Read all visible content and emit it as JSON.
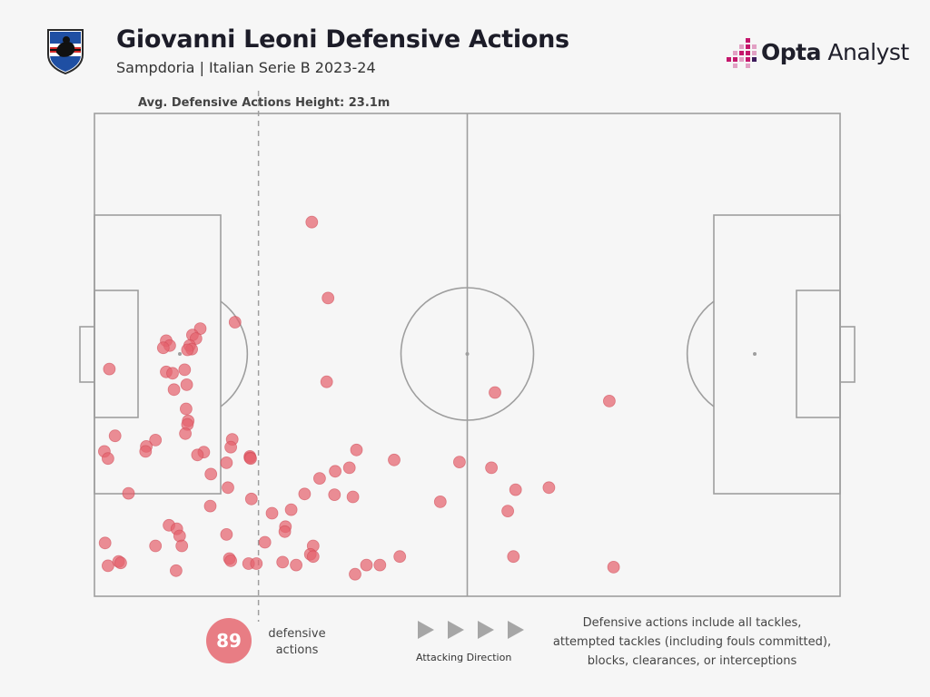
{
  "header": {
    "title": "Giovanni Leoni Defensive Actions",
    "subtitle": "Sampdoria | Italian Serie B 2023-24"
  },
  "brand": {
    "prefix": "Opta",
    "suffix": " Analyst",
    "icon": "opta-analyst-logo",
    "accent_colors": [
      "#c4176c",
      "#e2a0c4",
      "#3d1b5b"
    ]
  },
  "crest": {
    "icon": "sampdoria-crest"
  },
  "colors": {
    "dot": "#e5636d",
    "pitch_line": "#9e9e9e",
    "background": "#f6f6f6"
  },
  "chart_data": {
    "type": "scatter",
    "title": "Giovanni Leoni Defensive Actions",
    "pitch": {
      "length_m": 105,
      "width_m": 68
    },
    "average_line": {
      "label": "Avg. Defensive Actions Height: 23.1m",
      "x": 23.1
    },
    "points_unit": "metres from own goal line (x) and from left touchline (y)",
    "points": [
      [
        30.6,
        15.3
      ],
      [
        32.9,
        26.0
      ],
      [
        19.8,
        29.4
      ],
      [
        14.9,
        30.3
      ],
      [
        13.8,
        31.2
      ],
      [
        14.3,
        31.7
      ],
      [
        10.1,
        32.0
      ],
      [
        10.6,
        32.7
      ],
      [
        13.4,
        32.7
      ],
      [
        9.7,
        33.0
      ],
      [
        13.7,
        33.2
      ],
      [
        13.1,
        33.3
      ],
      [
        2.1,
        36.0
      ],
      [
        12.7,
        36.1
      ],
      [
        10.1,
        36.4
      ],
      [
        11.0,
        36.6
      ],
      [
        32.7,
        37.8
      ],
      [
        13.0,
        38.2
      ],
      [
        11.2,
        38.9
      ],
      [
        56.4,
        39.3
      ],
      [
        72.5,
        40.5
      ],
      [
        12.9,
        41.6
      ],
      [
        13.2,
        43.3
      ],
      [
        13.1,
        43.8
      ],
      [
        12.8,
        45.1
      ],
      [
        2.9,
        45.4
      ],
      [
        19.4,
        45.9
      ],
      [
        8.6,
        46.0
      ],
      [
        7.3,
        46.9
      ],
      [
        19.2,
        47.0
      ],
      [
        36.9,
        47.4
      ],
      [
        1.4,
        47.6
      ],
      [
        7.2,
        47.6
      ],
      [
        15.4,
        47.7
      ],
      [
        14.5,
        48.1
      ],
      [
        21.9,
        48.3
      ],
      [
        21.9,
        48.5
      ],
      [
        22.0,
        48.6
      ],
      [
        42.2,
        48.8
      ],
      [
        1.9,
        48.6
      ],
      [
        51.4,
        49.1
      ],
      [
        18.6,
        49.2
      ],
      [
        35.9,
        49.9
      ],
      [
        55.9,
        49.9
      ],
      [
        16.4,
        50.8
      ],
      [
        31.7,
        51.4
      ],
      [
        18.8,
        52.7
      ],
      [
        64.0,
        52.7
      ],
      [
        59.3,
        53.0
      ],
      [
        4.8,
        53.5
      ],
      [
        29.6,
        53.6
      ],
      [
        33.8,
        53.7
      ],
      [
        36.4,
        54.0
      ],
      [
        22.1,
        54.3
      ],
      [
        48.7,
        54.7
      ],
      [
        16.3,
        55.3
      ],
      [
        27.7,
        55.8
      ],
      [
        25.0,
        56.3
      ],
      [
        58.2,
        56.0
      ],
      [
        10.5,
        58.0
      ],
      [
        26.9,
        58.2
      ],
      [
        11.6,
        58.5
      ],
      [
        26.8,
        58.9
      ],
      [
        18.6,
        59.3
      ],
      [
        12.0,
        59.5
      ],
      [
        24.0,
        60.4
      ],
      [
        1.5,
        60.5
      ],
      [
        8.6,
        60.9
      ],
      [
        12.3,
        60.9
      ],
      [
        30.8,
        60.9
      ],
      [
        30.4,
        62.1
      ],
      [
        30.8,
        62.4
      ],
      [
        43.0,
        62.4
      ],
      [
        59.0,
        62.4
      ],
      [
        19.0,
        62.7
      ],
      [
        19.2,
        63.0
      ],
      [
        3.4,
        63.1
      ],
      [
        3.7,
        63.3
      ],
      [
        21.7,
        63.4
      ],
      [
        22.8,
        63.4
      ],
      [
        26.5,
        63.2
      ],
      [
        28.4,
        63.6
      ],
      [
        38.3,
        63.6
      ],
      [
        40.2,
        63.6
      ],
      [
        1.9,
        63.7
      ],
      [
        73.1,
        63.9
      ],
      [
        36.7,
        64.9
      ],
      [
        11.5,
        64.4
      ],
      [
        33.9,
        50.4
      ]
    ]
  },
  "summary": {
    "count": "89",
    "count_label_line1": "defensive",
    "count_label_line2": "actions",
    "direction_label": "Attacking Direction",
    "arrow_icon": "play-triangle-icon"
  },
  "note": {
    "line1": "Defensive actions include all tackles,",
    "line2": "attempted tackles (including fouls committed),",
    "line3": "blocks, clearances, or interceptions"
  }
}
